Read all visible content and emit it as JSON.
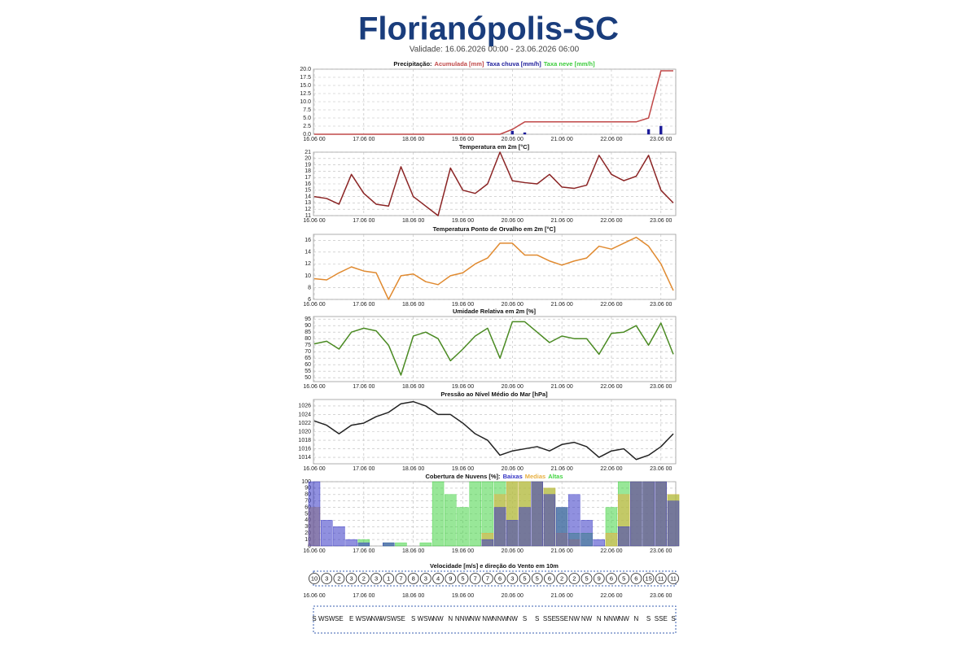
{
  "header": {
    "title": "Florianópolis-SC",
    "subtitle": "Validade: 16.06.2026 00:00 - 23.06.2026 06:00"
  },
  "chart_data": [
    {
      "type": "combo",
      "title": "Precipitação:",
      "x": [
        "16.06 00",
        "16.06 06",
        "16.06 12",
        "16.06 18",
        "17.06 00",
        "17.06 06",
        "17.06 12",
        "17.06 18",
        "18.06 00",
        "18.06 06",
        "18.06 12",
        "18.06 18",
        "19.06 00",
        "19.06 06",
        "19.06 12",
        "19.06 18",
        "20.06 00",
        "20.06 06",
        "20.06 12",
        "20.06 18",
        "21.06 00",
        "21.06 06",
        "21.06 12",
        "21.06 18",
        "22.06 00",
        "22.06 06",
        "22.06 12",
        "22.06 18",
        "23.06 00",
        "23.06 06"
      ],
      "xticks": [
        "16.06 00",
        "17.06 00",
        "18.06 00",
        "19.06 00",
        "20.06 00",
        "21.06 00",
        "22.06 00",
        "23.06 00"
      ],
      "ylim": [
        0,
        20
      ],
      "yticks": [
        {
          "value": 0,
          "label": "0.0"
        },
        {
          "value": 2.5,
          "label": "2.5"
        },
        {
          "value": 5,
          "label": "5.0"
        },
        {
          "value": 7.5,
          "label": "7.5"
        },
        {
          "value": 10,
          "label": "10.0"
        },
        {
          "value": 12.5,
          "label": "12.5"
        },
        {
          "value": 15,
          "label": "15.0"
        },
        {
          "value": 17.5,
          "label": "17.5"
        },
        {
          "value": 20,
          "label": "20.0"
        }
      ],
      "grid": true,
      "series": [
        {
          "name": "Acumulada [mm]",
          "color": "#c04848",
          "style": "line",
          "values": [
            0,
            0,
            0,
            0,
            0,
            0,
            0,
            0,
            0,
            0,
            0,
            0,
            0,
            0,
            0,
            0,
            1.5,
            3.8,
            3.8,
            3.8,
            3.8,
            3.8,
            3.8,
            3.8,
            3.8,
            3.8,
            3.8,
            5,
            19.5,
            19.5
          ]
        },
        {
          "name": "Taxa chuva [mm/h]",
          "color": "#1c1c9a",
          "style": "bar",
          "values": [
            0,
            0,
            0,
            0,
            0,
            0,
            0,
            0,
            0,
            0,
            0,
            0,
            0,
            0,
            0,
            0,
            1,
            0.5,
            0,
            0,
            0,
            0,
            0,
            0,
            0,
            0,
            0,
            1.5,
            2.5,
            0
          ]
        },
        {
          "name": "Taxa neve [mm/h]",
          "color": "#3ccc3c",
          "style": "bar",
          "values": [
            0,
            0,
            0,
            0,
            0,
            0,
            0,
            0,
            0,
            0,
            0,
            0,
            0,
            0,
            0,
            0,
            0,
            0,
            0,
            0,
            0,
            0,
            0,
            0,
            0,
            0,
            0,
            0,
            0,
            0
          ]
        }
      ]
    },
    {
      "type": "line",
      "title": "Temperatura em 2m [°C]",
      "x": [
        "16.06 00",
        "16.06 06",
        "16.06 12",
        "16.06 18",
        "17.06 00",
        "17.06 06",
        "17.06 12",
        "17.06 18",
        "18.06 00",
        "18.06 06",
        "18.06 12",
        "18.06 18",
        "19.06 00",
        "19.06 06",
        "19.06 12",
        "19.06 18",
        "20.06 00",
        "20.06 06",
        "20.06 12",
        "20.06 18",
        "21.06 00",
        "21.06 06",
        "21.06 12",
        "21.06 18",
        "22.06 00",
        "22.06 06",
        "22.06 12",
        "22.06 18",
        "23.06 00",
        "23.06 06"
      ],
      "xticks": [
        "16.06 00",
        "17.06 00",
        "18.06 00",
        "19.06 00",
        "20.06 00",
        "21.06 00",
        "22.06 00",
        "23.06 00"
      ],
      "ylim": [
        11,
        21
      ],
      "yticks": [
        11,
        12,
        13,
        14,
        15,
        16,
        17,
        18,
        19,
        20,
        21
      ],
      "grid": true,
      "series": [
        {
          "name": "Temperatura",
          "color": "#8b2424",
          "values": [
            14,
            13.7,
            12.8,
            17.5,
            14.5,
            12.8,
            12.5,
            18.7,
            14,
            12.5,
            11,
            18.5,
            15,
            14.5,
            16,
            21,
            16.5,
            16.2,
            16,
            17.5,
            15.5,
            15.3,
            15.8,
            20.5,
            17.5,
            16.5,
            17.2,
            20.5,
            15,
            13
          ]
        }
      ]
    },
    {
      "type": "line",
      "title": "Temperatura Ponto de Orvalho em 2m [°C]",
      "x": [
        "16.06 00",
        "16.06 06",
        "16.06 12",
        "16.06 18",
        "17.06 00",
        "17.06 06",
        "17.06 12",
        "17.06 18",
        "18.06 00",
        "18.06 06",
        "18.06 12",
        "18.06 18",
        "19.06 00",
        "19.06 06",
        "19.06 12",
        "19.06 18",
        "20.06 00",
        "20.06 06",
        "20.06 12",
        "20.06 18",
        "21.06 00",
        "21.06 06",
        "21.06 12",
        "21.06 18",
        "22.06 00",
        "22.06 06",
        "22.06 12",
        "22.06 18",
        "23.06 00",
        "23.06 06"
      ],
      "xticks": [
        "16.06 00",
        "17.06 00",
        "18.06 00",
        "19.06 00",
        "20.06 00",
        "21.06 00",
        "22.06 00",
        "23.06 00"
      ],
      "ylim": [
        6,
        17
      ],
      "yticks": [
        6,
        8,
        10,
        12,
        14,
        16
      ],
      "grid": true,
      "series": [
        {
          "name": "Ponto de Orvalho",
          "color": "#e08a30",
          "values": [
            9.5,
            9.3,
            10.5,
            11.5,
            10.8,
            10.5,
            6,
            10,
            10.3,
            9,
            8.5,
            10,
            10.5,
            12,
            13,
            15.5,
            15.5,
            13.5,
            13.5,
            12.5,
            11.8,
            12.5,
            13,
            15,
            14.5,
            15.5,
            16.5,
            15,
            12,
            7.5
          ]
        }
      ]
    },
    {
      "type": "line",
      "title": "Umidade Relativa em 2m [%]",
      "x": [
        "16.06 00",
        "16.06 06",
        "16.06 12",
        "16.06 18",
        "17.06 00",
        "17.06 06",
        "17.06 12",
        "17.06 18",
        "18.06 00",
        "18.06 06",
        "18.06 12",
        "18.06 18",
        "19.06 00",
        "19.06 06",
        "19.06 12",
        "19.06 18",
        "20.06 00",
        "20.06 06",
        "20.06 12",
        "20.06 18",
        "21.06 00",
        "21.06 06",
        "21.06 12",
        "21.06 18",
        "22.06 00",
        "22.06 06",
        "22.06 12",
        "22.06 18",
        "23.06 00",
        "23.06 06"
      ],
      "xticks": [
        "16.06 00",
        "17.06 00",
        "18.06 00",
        "19.06 00",
        "20.06 00",
        "21.06 00",
        "22.06 00",
        "23.06 00"
      ],
      "ylim": [
        47,
        97
      ],
      "yticks": [
        50,
        55,
        60,
        65,
        70,
        75,
        80,
        85,
        90,
        95
      ],
      "grid": true,
      "series": [
        {
          "name": "Umidade",
          "color": "#4a8a22",
          "values": [
            76,
            78,
            72,
            85,
            88,
            86,
            75,
            52,
            82,
            85,
            80,
            63,
            72,
            82,
            88,
            65,
            93,
            93,
            85,
            77,
            82,
            80,
            80,
            68,
            84,
            85,
            90,
            75,
            92,
            68
          ]
        }
      ]
    },
    {
      "type": "line",
      "title": "Pressão ao Nível Médio do Mar [hPa]",
      "x": [
        "16.06 00",
        "16.06 06",
        "16.06 12",
        "16.06 18",
        "17.06 00",
        "17.06 06",
        "17.06 12",
        "17.06 18",
        "18.06 00",
        "18.06 06",
        "18.06 12",
        "18.06 18",
        "19.06 00",
        "19.06 06",
        "19.06 12",
        "19.06 18",
        "20.06 00",
        "20.06 06",
        "20.06 12",
        "20.06 18",
        "21.06 00",
        "21.06 06",
        "21.06 12",
        "21.06 18",
        "22.06 00",
        "22.06 06",
        "22.06 12",
        "22.06 18",
        "23.06 00",
        "23.06 06"
      ],
      "xticks": [
        "16.06 00",
        "17.06 00",
        "18.06 00",
        "19.06 00",
        "20.06 00",
        "21.06 00",
        "22.06 00",
        "23.06 00"
      ],
      "ylim": [
        1012.5,
        1027.5
      ],
      "yticks": [
        1014,
        1016,
        1018,
        1020,
        1022,
        1024,
        1026
      ],
      "grid": true,
      "series": [
        {
          "name": "Pressão",
          "color": "#222222",
          "values": [
            1022.5,
            1021.5,
            1019.5,
            1021.5,
            1022,
            1023.5,
            1024.5,
            1026.5,
            1027,
            1026,
            1024,
            1024,
            1022,
            1019.5,
            1018,
            1014.5,
            1015.5,
            1016,
            1016.5,
            1015.5,
            1017,
            1017.5,
            1016.5,
            1014,
            1015.5,
            1016,
            1013.5,
            1014.5,
            1016.5,
            1019.5
          ]
        }
      ]
    },
    {
      "type": "bar",
      "title": "Cobertura de Nuvens [%]:",
      "x": [
        "16.06 00",
        "16.06 06",
        "16.06 12",
        "16.06 18",
        "17.06 00",
        "17.06 06",
        "17.06 12",
        "17.06 18",
        "18.06 00",
        "18.06 06",
        "18.06 12",
        "18.06 18",
        "19.06 00",
        "19.06 06",
        "19.06 12",
        "19.06 18",
        "20.06 00",
        "20.06 06",
        "20.06 12",
        "20.06 18",
        "21.06 00",
        "21.06 06",
        "21.06 12",
        "21.06 18",
        "22.06 00",
        "22.06 06",
        "22.06 12",
        "22.06 18",
        "23.06 00",
        "23.06 06"
      ],
      "xticks": [
        "16.06 00",
        "17.06 00",
        "18.06 00",
        "19.06 00",
        "20.06 00",
        "21.06 00",
        "22.06 00",
        "23.06 00"
      ],
      "ylim": [
        0,
        100
      ],
      "yticks": [
        0,
        10,
        20,
        30,
        40,
        50,
        60,
        70,
        80,
        90,
        100
      ],
      "grid": true,
      "series": [
        {
          "name": "Altas",
          "color": "#44d444",
          "values": [
            0,
            0,
            0,
            0,
            10,
            0,
            5,
            5,
            0,
            5,
            100,
            80,
            60,
            100,
            100,
            100,
            100,
            100,
            100,
            90,
            60,
            20,
            20,
            0,
            60,
            100,
            100,
            100,
            100,
            80
          ]
        },
        {
          "name": "Medias",
          "color": "#e8b040",
          "values": [
            60,
            0,
            0,
            0,
            0,
            0,
            0,
            0,
            0,
            0,
            0,
            0,
            0,
            0,
            20,
            80,
            100,
            100,
            100,
            90,
            20,
            10,
            0,
            0,
            20,
            80,
            100,
            100,
            100,
            80
          ]
        },
        {
          "name": "Baixas",
          "color": "#3434c4",
          "values": [
            100,
            40,
            30,
            10,
            5,
            0,
            5,
            0,
            0,
            0,
            0,
            0,
            0,
            0,
            10,
            60,
            40,
            60,
            100,
            80,
            60,
            80,
            40,
            10,
            0,
            30,
            100,
            100,
            100,
            70
          ]
        }
      ]
    },
    {
      "type": "wind",
      "title": "Velocidade [m/s] e direção do Vento em 10m",
      "x": [
        "16.06 00",
        "16.06 06",
        "16.06 12",
        "16.06 18",
        "17.06 00",
        "17.06 06",
        "17.06 12",
        "17.06 18",
        "18.06 00",
        "18.06 06",
        "18.06 12",
        "18.06 18",
        "19.06 00",
        "19.06 06",
        "19.06 12",
        "19.06 18",
        "20.06 00",
        "20.06 06",
        "20.06 12",
        "20.06 18",
        "21.06 00",
        "21.06 06",
        "21.06 12",
        "21.06 18",
        "22.06 00",
        "22.06 06",
        "22.06 12",
        "22.06 18",
        "23.06 00",
        "23.06 06"
      ],
      "xticks": [
        "16.06 00",
        "17.06 00",
        "18.06 00",
        "19.06 00",
        "20.06 00",
        "21.06 00",
        "22.06 00",
        "23.06 00"
      ],
      "values": [
        10,
        3,
        2,
        3,
        2,
        3,
        1,
        7,
        8,
        3,
        4,
        9,
        5,
        7,
        7,
        6,
        3,
        5,
        5,
        6,
        2,
        2,
        5,
        9,
        6,
        5,
        6,
        15,
        11,
        11
      ],
      "directions": [
        "S",
        "WSW",
        "SE",
        "E",
        "WSW",
        "NW",
        "WSW",
        "SE",
        "S",
        "WSW",
        "NW",
        "N",
        "NNW",
        "NW",
        "NW",
        "NNW",
        "NW",
        "S",
        "S",
        "SSE",
        "SSE",
        "NW",
        "NW",
        "N",
        "NNW",
        "NW",
        "N",
        "S",
        "SSE",
        "S"
      ]
    }
  ]
}
